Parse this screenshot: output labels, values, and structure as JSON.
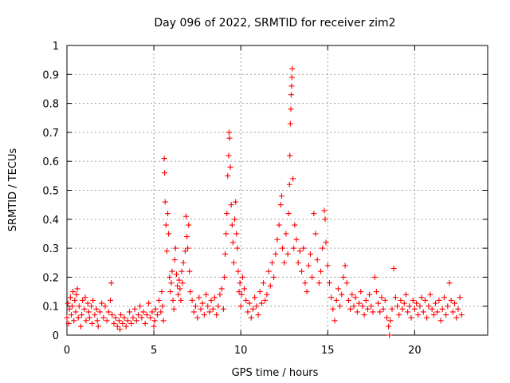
{
  "chart_data": {
    "type": "scatter",
    "title": "Day 096 of 2022, SRMTID for receiver zim2",
    "xlabel": "GPS time / hours",
    "ylabel": "SRMTID / TECUs",
    "xlim": [
      0,
      24.2
    ],
    "ylim": [
      0,
      1
    ],
    "x_ticks": [
      "0",
      "5",
      "10",
      "15",
      "20"
    ],
    "x_tick_values": [
      0,
      5,
      10,
      15,
      20
    ],
    "y_ticks": [
      "0",
      "0.1",
      "0.2",
      "0.3",
      "0.4",
      "0.5",
      "0.6",
      "0.7",
      "0.8",
      "0.9",
      "1"
    ],
    "y_tick_values": [
      0,
      0.1,
      0.2,
      0.3,
      0.4,
      0.5,
      0.6,
      0.7,
      0.8,
      0.9,
      1
    ],
    "grid": true,
    "marker": "+",
    "color": "#ff0000",
    "series": [
      {
        "name": "SRMTID",
        "points": [
          [
            0.0,
            0.06
          ],
          [
            0.05,
            0.11
          ],
          [
            0.1,
            0.04
          ],
          [
            0.15,
            0.09
          ],
          [
            0.2,
            0.13
          ],
          [
            0.25,
            0.07
          ],
          [
            0.3,
            0.1
          ],
          [
            0.35,
            0.15
          ],
          [
            0.4,
            0.05
          ],
          [
            0.45,
            0.12
          ],
          [
            0.5,
            0.08
          ],
          [
            0.55,
            0.14
          ],
          [
            0.6,
            0.16
          ],
          [
            0.65,
            0.06
          ],
          [
            0.7,
            0.1
          ],
          [
            0.8,
            0.03
          ],
          [
            0.85,
            0.07
          ],
          [
            0.9,
            0.12
          ],
          [
            1.0,
            0.09
          ],
          [
            1.05,
            0.13
          ],
          [
            1.1,
            0.05
          ],
          [
            1.2,
            0.11
          ],
          [
            1.25,
            0.08
          ],
          [
            1.3,
            0.06
          ],
          [
            1.4,
            0.1
          ],
          [
            1.45,
            0.04
          ],
          [
            1.5,
            0.12
          ],
          [
            1.6,
            0.07
          ],
          [
            1.7,
            0.09
          ],
          [
            1.75,
            0.05
          ],
          [
            1.8,
            0.03
          ],
          [
            1.9,
            0.08
          ],
          [
            2.0,
            0.11
          ],
          [
            2.1,
            0.06
          ],
          [
            2.2,
            0.1
          ],
          [
            2.3,
            0.05
          ],
          [
            2.4,
            0.08
          ],
          [
            2.5,
            0.12
          ],
          [
            2.55,
            0.18
          ],
          [
            2.6,
            0.07
          ],
          [
            2.7,
            0.04
          ],
          [
            2.8,
            0.06
          ],
          [
            2.9,
            0.03
          ],
          [
            3.0,
            0.05
          ],
          [
            3.05,
            0.02
          ],
          [
            3.1,
            0.07
          ],
          [
            3.2,
            0.04
          ],
          [
            3.3,
            0.06
          ],
          [
            3.4,
            0.03
          ],
          [
            3.5,
            0.05
          ],
          [
            3.6,
            0.08
          ],
          [
            3.7,
            0.04
          ],
          [
            3.8,
            0.06
          ],
          [
            3.9,
            0.09
          ],
          [
            4.0,
            0.05
          ],
          [
            4.1,
            0.07
          ],
          [
            4.2,
            0.1
          ],
          [
            4.3,
            0.06
          ],
          [
            4.4,
            0.08
          ],
          [
            4.5,
            0.04
          ],
          [
            4.6,
            0.07
          ],
          [
            4.7,
            0.11
          ],
          [
            4.8,
            0.06
          ],
          [
            4.9,
            0.08
          ],
          [
            5.0,
            0.03
          ],
          [
            5.05,
            0.05
          ],
          [
            5.1,
            0.09
          ],
          [
            5.2,
            0.07
          ],
          [
            5.3,
            0.12
          ],
          [
            5.4,
            0.08
          ],
          [
            5.45,
            0.15
          ],
          [
            5.5,
            0.1
          ],
          [
            5.55,
            0.05
          ],
          [
            5.6,
            0.61
          ],
          [
            5.62,
            0.56
          ],
          [
            5.65,
            0.46
          ],
          [
            5.7,
            0.38
          ],
          [
            5.75,
            0.29
          ],
          [
            5.8,
            0.42
          ],
          [
            5.85,
            0.35
          ],
          [
            5.9,
            0.2
          ],
          [
            5.95,
            0.15
          ],
          [
            6.0,
            0.18
          ],
          [
            6.05,
            0.22
          ],
          [
            6.1,
            0.12
          ],
          [
            6.15,
            0.09
          ],
          [
            6.2,
            0.26
          ],
          [
            6.25,
            0.3
          ],
          [
            6.3,
            0.21
          ],
          [
            6.35,
            0.17
          ],
          [
            6.4,
            0.14
          ],
          [
            6.45,
            0.19
          ],
          [
            6.5,
            0.16
          ],
          [
            6.55,
            0.12
          ],
          [
            6.6,
            0.22
          ],
          [
            6.65,
            0.18
          ],
          [
            6.7,
            0.25
          ],
          [
            6.8,
            0.29
          ],
          [
            6.85,
            0.41
          ],
          [
            6.9,
            0.34
          ],
          [
            6.95,
            0.3
          ],
          [
            7.0,
            0.38
          ],
          [
            7.05,
            0.22
          ],
          [
            7.1,
            0.15
          ],
          [
            7.2,
            0.12
          ],
          [
            7.3,
            0.08
          ],
          [
            7.4,
            0.1
          ],
          [
            7.5,
            0.06
          ],
          [
            7.6,
            0.13
          ],
          [
            7.7,
            0.09
          ],
          [
            7.8,
            0.11
          ],
          [
            7.9,
            0.07
          ],
          [
            8.0,
            0.14
          ],
          [
            8.1,
            0.1
          ],
          [
            8.2,
            0.08
          ],
          [
            8.3,
            0.12
          ],
          [
            8.4,
            0.09
          ],
          [
            8.5,
            0.13
          ],
          [
            8.6,
            0.07
          ],
          [
            8.7,
            0.1
          ],
          [
            8.8,
            0.14
          ],
          [
            8.9,
            0.16
          ],
          [
            9.0,
            0.09
          ],
          [
            9.05,
            0.2
          ],
          [
            9.1,
            0.28
          ],
          [
            9.15,
            0.35
          ],
          [
            9.2,
            0.42
          ],
          [
            9.25,
            0.55
          ],
          [
            9.3,
            0.62
          ],
          [
            9.32,
            0.7
          ],
          [
            9.35,
            0.68
          ],
          [
            9.4,
            0.58
          ],
          [
            9.45,
            0.45
          ],
          [
            9.5,
            0.38
          ],
          [
            9.55,
            0.32
          ],
          [
            9.6,
            0.25
          ],
          [
            9.65,
            0.4
          ],
          [
            9.7,
            0.46
          ],
          [
            9.75,
            0.35
          ],
          [
            9.8,
            0.3
          ],
          [
            9.85,
            0.22
          ],
          [
            9.9,
            0.15
          ],
          [
            9.95,
            0.18
          ],
          [
            10.0,
            0.1
          ],
          [
            10.05,
            0.14
          ],
          [
            10.1,
            0.2
          ],
          [
            10.2,
            0.16
          ],
          [
            10.3,
            0.12
          ],
          [
            10.4,
            0.08
          ],
          [
            10.5,
            0.11
          ],
          [
            10.6,
            0.06
          ],
          [
            10.7,
            0.09
          ],
          [
            10.8,
            0.13
          ],
          [
            10.9,
            0.1
          ],
          [
            11.0,
            0.07
          ],
          [
            11.1,
            0.15
          ],
          [
            11.2,
            0.11
          ],
          [
            11.3,
            0.18
          ],
          [
            11.4,
            0.12
          ],
          [
            11.5,
            0.14
          ],
          [
            11.6,
            0.22
          ],
          [
            11.7,
            0.17
          ],
          [
            11.8,
            0.25
          ],
          [
            11.9,
            0.2
          ],
          [
            12.0,
            0.28
          ],
          [
            12.1,
            0.33
          ],
          [
            12.2,
            0.38
          ],
          [
            12.3,
            0.45
          ],
          [
            12.35,
            0.48
          ],
          [
            12.4,
            0.3
          ],
          [
            12.5,
            0.25
          ],
          [
            12.6,
            0.35
          ],
          [
            12.7,
            0.28
          ],
          [
            12.75,
            0.42
          ],
          [
            12.8,
            0.52
          ],
          [
            12.82,
            0.62
          ],
          [
            12.85,
            0.73
          ],
          [
            12.88,
            0.78
          ],
          [
            12.9,
            0.83
          ],
          [
            12.92,
            0.86
          ],
          [
            12.94,
            0.89
          ],
          [
            12.96,
            0.92
          ],
          [
            13.0,
            0.54
          ],
          [
            13.05,
            0.3
          ],
          [
            13.1,
            0.38
          ],
          [
            13.2,
            0.33
          ],
          [
            13.3,
            0.25
          ],
          [
            13.4,
            0.29
          ],
          [
            13.5,
            0.22
          ],
          [
            13.6,
            0.3
          ],
          [
            13.7,
            0.18
          ],
          [
            13.8,
            0.15
          ],
          [
            13.9,
            0.24
          ],
          [
            14.0,
            0.28
          ],
          [
            14.1,
            0.2
          ],
          [
            14.2,
            0.42
          ],
          [
            14.3,
            0.35
          ],
          [
            14.4,
            0.26
          ],
          [
            14.5,
            0.18
          ],
          [
            14.6,
            0.22
          ],
          [
            14.7,
            0.3
          ],
          [
            14.8,
            0.43
          ],
          [
            14.85,
            0.4
          ],
          [
            14.9,
            0.32
          ],
          [
            15.0,
            0.24
          ],
          [
            15.1,
            0.18
          ],
          [
            15.2,
            0.13
          ],
          [
            15.3,
            0.09
          ],
          [
            15.4,
            0.05
          ],
          [
            15.5,
            0.12
          ],
          [
            15.6,
            0.16
          ],
          [
            15.7,
            0.1
          ],
          [
            15.8,
            0.14
          ],
          [
            15.9,
            0.2
          ],
          [
            16.0,
            0.24
          ],
          [
            16.1,
            0.18
          ],
          [
            16.2,
            0.12
          ],
          [
            16.3,
            0.09
          ],
          [
            16.4,
            0.14
          ],
          [
            16.5,
            0.1
          ],
          [
            16.6,
            0.13
          ],
          [
            16.7,
            0.08
          ],
          [
            16.8,
            0.11
          ],
          [
            16.9,
            0.15
          ],
          [
            17.0,
            0.1
          ],
          [
            17.1,
            0.07
          ],
          [
            17.2,
            0.12
          ],
          [
            17.3,
            0.09
          ],
          [
            17.4,
            0.14
          ],
          [
            17.5,
            0.1
          ],
          [
            17.6,
            0.08
          ],
          [
            17.7,
            0.2
          ],
          [
            17.8,
            0.15
          ],
          [
            17.9,
            0.11
          ],
          [
            18.0,
            0.08
          ],
          [
            18.1,
            0.13
          ],
          [
            18.2,
            0.09
          ],
          [
            18.3,
            0.12
          ],
          [
            18.4,
            0.06
          ],
          [
            18.5,
            0.03
          ],
          [
            18.55,
            0.0
          ],
          [
            18.6,
            0.05
          ],
          [
            18.7,
            0.09
          ],
          [
            18.8,
            0.23
          ],
          [
            18.9,
            0.13
          ],
          [
            19.0,
            0.1
          ],
          [
            19.1,
            0.07
          ],
          [
            19.2,
            0.12
          ],
          [
            19.3,
            0.09
          ],
          [
            19.4,
            0.11
          ],
          [
            19.5,
            0.14
          ],
          [
            19.6,
            0.08
          ],
          [
            19.7,
            0.1
          ],
          [
            19.8,
            0.06
          ],
          [
            19.9,
            0.12
          ],
          [
            20.0,
            0.09
          ],
          [
            20.1,
            0.11
          ],
          [
            20.2,
            0.07
          ],
          [
            20.3,
            0.1
          ],
          [
            20.4,
            0.13
          ],
          [
            20.5,
            0.08
          ],
          [
            20.6,
            0.12
          ],
          [
            20.7,
            0.06
          ],
          [
            20.8,
            0.1
          ],
          [
            20.9,
            0.14
          ],
          [
            21.0,
            0.09
          ],
          [
            21.1,
            0.07
          ],
          [
            21.2,
            0.11
          ],
          [
            21.3,
            0.08
          ],
          [
            21.4,
            0.12
          ],
          [
            21.5,
            0.05
          ],
          [
            21.6,
            0.09
          ],
          [
            21.7,
            0.13
          ],
          [
            21.8,
            0.07
          ],
          [
            21.9,
            0.1
          ],
          [
            22.0,
            0.18
          ],
          [
            22.1,
            0.12
          ],
          [
            22.2,
            0.08
          ],
          [
            22.3,
            0.11
          ],
          [
            22.4,
            0.06
          ],
          [
            22.5,
            0.09
          ],
          [
            22.6,
            0.13
          ],
          [
            22.7,
            0.07
          ]
        ]
      }
    ]
  }
}
